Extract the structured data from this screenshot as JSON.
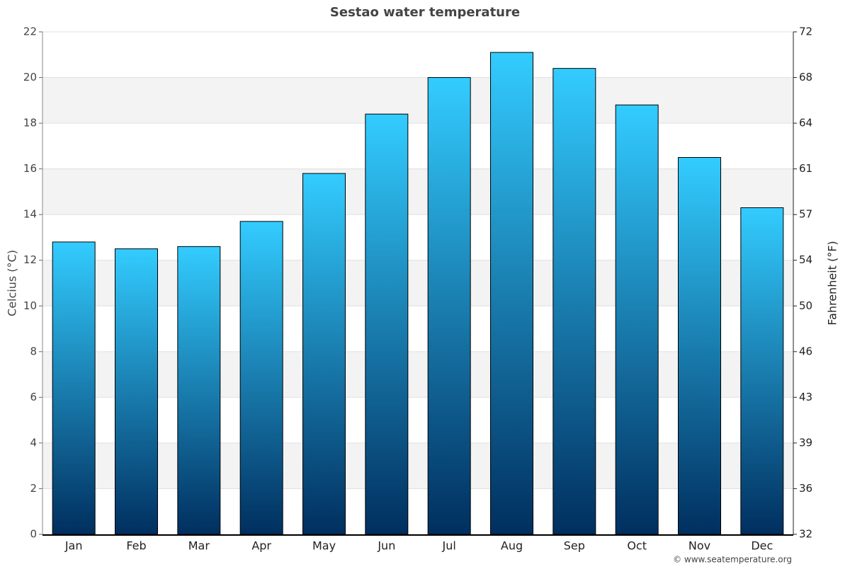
{
  "chart_data": {
    "type": "bar",
    "title": "Sestao water temperature",
    "categories": [
      "Jan",
      "Feb",
      "Mar",
      "Apr",
      "May",
      "Jun",
      "Jul",
      "Aug",
      "Sep",
      "Oct",
      "Nov",
      "Dec"
    ],
    "values": [
      12.8,
      12.5,
      12.6,
      13.7,
      15.8,
      18.4,
      20.0,
      21.1,
      20.4,
      18.8,
      16.5,
      14.3
    ],
    "gradient": [
      "#33ccff",
      "#002f5f"
    ],
    "ylabel": "Celcius (°C)",
    "y2label": "Fahrenheit (°F)",
    "ylim": [
      0,
      22
    ],
    "yticks": [
      0,
      2,
      4,
      6,
      8,
      10,
      12,
      14,
      16,
      18,
      20,
      22
    ],
    "y2lim": [
      32,
      71.6
    ],
    "y2ticks": [
      32,
      {
        "value": 35.6,
        "label": "36"
      },
      {
        "value": 39.2,
        "label": "39"
      },
      {
        "value": 42.8,
        "label": "43"
      },
      {
        "value": 46.4,
        "label": "46"
      },
      50,
      {
        "value": 53.6,
        "label": "54"
      },
      {
        "value": 57.2,
        "label": "57"
      },
      {
        "value": 60.8,
        "label": "61"
      },
      {
        "value": 64.4,
        "label": "64"
      },
      68,
      {
        "value": 71.6,
        "label": "72"
      }
    ],
    "grid": true,
    "credit": "© www.seatemperature.org"
  }
}
